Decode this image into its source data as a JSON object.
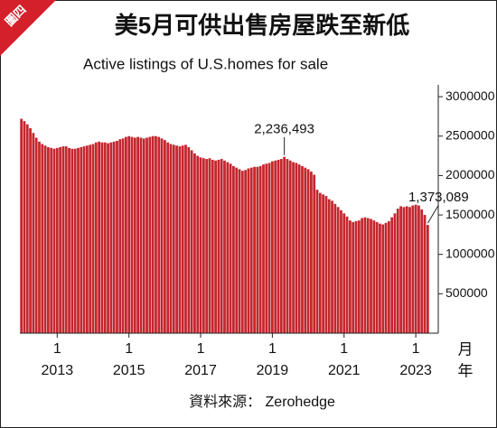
{
  "chart_data": {
    "type": "bar",
    "tag": "圖四",
    "title": "美5月可供出售房屋跌至新低",
    "subtitle": "Active listings of U.S.homes for sale",
    "source": "資料來源： Zerohedge",
    "x_unit_month": "月",
    "x_unit_year": "年",
    "color": "#c4262e",
    "categories": [
      null,
      null,
      null,
      null,
      null,
      null,
      null,
      null,
      null,
      null,
      null,
      null,
      "1",
      null,
      null,
      null,
      null,
      null,
      null,
      null,
      null,
      null,
      null,
      null,
      null,
      null,
      null,
      null,
      null,
      null,
      null,
      null,
      null,
      null,
      null,
      null,
      "1",
      null,
      null,
      null,
      null,
      null,
      null,
      null,
      null,
      null,
      null,
      null,
      null,
      null,
      null,
      null,
      null,
      null,
      null,
      null,
      null,
      null,
      null,
      null,
      "1",
      null,
      null,
      null,
      null,
      null,
      null,
      null,
      null,
      null,
      null,
      null,
      null,
      null,
      null,
      null,
      null,
      null,
      null,
      null,
      null,
      null,
      null,
      null,
      "1",
      null,
      null,
      null,
      null,
      null,
      null,
      null,
      null,
      null,
      null,
      null,
      null,
      null,
      null,
      null,
      null,
      null,
      null,
      null,
      null,
      null,
      null,
      null,
      "1",
      null,
      null,
      null,
      null,
      null,
      null,
      null,
      null,
      null,
      null,
      null,
      null,
      null,
      null,
      null,
      null,
      null,
      null,
      null,
      null,
      null,
      null,
      null,
      "1",
      null,
      null,
      null,
      null
    ],
    "category_years": [
      null,
      null,
      null,
      null,
      null,
      null,
      null,
      null,
      null,
      null,
      null,
      null,
      "2013",
      null,
      null,
      null,
      null,
      null,
      null,
      null,
      null,
      null,
      null,
      null,
      null,
      null,
      null,
      null,
      null,
      null,
      null,
      null,
      null,
      null,
      null,
      null,
      "2015",
      null,
      null,
      null,
      null,
      null,
      null,
      null,
      null,
      null,
      null,
      null,
      null,
      null,
      null,
      null,
      null,
      null,
      null,
      null,
      null,
      null,
      null,
      null,
      "2017",
      null,
      null,
      null,
      null,
      null,
      null,
      null,
      null,
      null,
      null,
      null,
      null,
      null,
      null,
      null,
      null,
      null,
      null,
      null,
      null,
      null,
      null,
      null,
      "2019",
      null,
      null,
      null,
      null,
      null,
      null,
      null,
      null,
      null,
      null,
      null,
      null,
      null,
      null,
      null,
      null,
      null,
      null,
      null,
      null,
      null,
      null,
      null,
      "2021",
      null,
      null,
      null,
      null,
      null,
      null,
      null,
      null,
      null,
      null,
      null,
      null,
      null,
      null,
      null,
      null,
      null,
      null,
      null,
      null,
      null,
      null,
      null,
      "2023",
      null,
      null,
      null,
      null
    ],
    "values": [
      2720000,
      2690000,
      2650000,
      2600000,
      2540000,
      2480000,
      2430000,
      2400000,
      2380000,
      2360000,
      2350000,
      2340000,
      2350000,
      2360000,
      2370000,
      2370000,
      2350000,
      2340000,
      2340000,
      2350000,
      2360000,
      2370000,
      2380000,
      2390000,
      2400000,
      2420000,
      2430000,
      2420000,
      2420000,
      2410000,
      2420000,
      2430000,
      2440000,
      2460000,
      2470000,
      2490000,
      2500000,
      2490000,
      2480000,
      2490000,
      2480000,
      2470000,
      2480000,
      2490000,
      2500000,
      2500000,
      2490000,
      2470000,
      2450000,
      2420000,
      2400000,
      2390000,
      2380000,
      2370000,
      2380000,
      2390000,
      2360000,
      2320000,
      2280000,
      2250000,
      2230000,
      2220000,
      2210000,
      2220000,
      2200000,
      2190000,
      2200000,
      2210000,
      2190000,
      2170000,
      2150000,
      2120000,
      2100000,
      2080000,
      2060000,
      2070000,
      2090000,
      2100000,
      2110000,
      2110000,
      2120000,
      2140000,
      2150000,
      2160000,
      2180000,
      2190000,
      2200000,
      2210000,
      2236493,
      2210000,
      2190000,
      2170000,
      2160000,
      2140000,
      2120000,
      2100000,
      2080000,
      2050000,
      2010000,
      1820000,
      1780000,
      1760000,
      1740000,
      1700000,
      1680000,
      1640000,
      1600000,
      1560000,
      1520000,
      1480000,
      1430000,
      1410000,
      1420000,
      1430000,
      1460000,
      1470000,
      1460000,
      1450000,
      1430000,
      1410000,
      1390000,
      1380000,
      1400000,
      1420000,
      1470000,
      1520000,
      1580000,
      1610000,
      1600000,
      1610000,
      1600000,
      1620000,
      1630000,
      1620000,
      1570000,
      1500000,
      1373089
    ],
    "annotations": [
      {
        "index": 88,
        "label": "2,236,493"
      },
      {
        "index": 136,
        "label": "1,373,089"
      }
    ],
    "ylim": [
      0,
      3150000
    ],
    "yticks": [
      500000,
      1000000,
      1500000,
      2000000,
      2500000,
      3000000
    ]
  }
}
